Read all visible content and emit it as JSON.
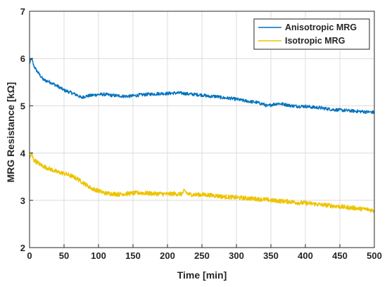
{
  "chart_data": {
    "type": "line",
    "xlabel": "Time [min]",
    "ylabel": "MRG Resistance [kΩ]",
    "xlim": [
      0,
      500
    ],
    "ylim": [
      2,
      7
    ],
    "xticks": [
      "0",
      "50",
      "100",
      "150",
      "200",
      "250",
      "300",
      "350",
      "400",
      "450",
      "500"
    ],
    "yticks": [
      "2",
      "3",
      "4",
      "5",
      "6",
      "7"
    ],
    "grid": true,
    "legend_position": "top-right",
    "series": [
      {
        "name": "Anisotropic MRG",
        "color": "#0072BD",
        "x": [
          0,
          3,
          6,
          10,
          15,
          20,
          30,
          40,
          50,
          60,
          70,
          75,
          80,
          90,
          100,
          110,
          120,
          130,
          140,
          150,
          160,
          170,
          180,
          190,
          200,
          210,
          220,
          230,
          240,
          250,
          260,
          270,
          280,
          290,
          300,
          310,
          320,
          330,
          340,
          345,
          350,
          360,
          370,
          380,
          390,
          400,
          410,
          420,
          430,
          440,
          450,
          460,
          470,
          480,
          490,
          500
        ],
        "y": [
          5.9,
          6.0,
          5.85,
          5.75,
          5.65,
          5.55,
          5.5,
          5.42,
          5.33,
          5.28,
          5.22,
          5.17,
          5.2,
          5.22,
          5.24,
          5.24,
          5.22,
          5.21,
          5.2,
          5.21,
          5.23,
          5.24,
          5.25,
          5.26,
          5.26,
          5.27,
          5.27,
          5.25,
          5.24,
          5.23,
          5.2,
          5.2,
          5.17,
          5.16,
          5.14,
          5.11,
          5.09,
          5.07,
          5.03,
          4.99,
          5.02,
          5.05,
          5.03,
          5.0,
          4.99,
          4.99,
          4.97,
          4.96,
          4.94,
          4.92,
          4.91,
          4.9,
          4.89,
          4.88,
          4.87,
          4.86
        ]
      },
      {
        "name": "Isotropic MRG",
        "color": "#EDC400",
        "x": [
          0,
          3,
          6,
          10,
          15,
          20,
          30,
          40,
          50,
          60,
          70,
          80,
          90,
          100,
          110,
          120,
          130,
          140,
          150,
          160,
          170,
          180,
          190,
          200,
          210,
          220,
          225,
          230,
          240,
          250,
          260,
          270,
          280,
          290,
          300,
          310,
          320,
          330,
          340,
          350,
          360,
          370,
          380,
          390,
          400,
          410,
          420,
          430,
          440,
          450,
          460,
          470,
          480,
          490,
          500
        ],
        "y": [
          3.9,
          3.98,
          3.85,
          3.82,
          3.76,
          3.72,
          3.66,
          3.6,
          3.57,
          3.52,
          3.45,
          3.35,
          3.25,
          3.2,
          3.15,
          3.14,
          3.13,
          3.14,
          3.15,
          3.16,
          3.15,
          3.14,
          3.14,
          3.13,
          3.14,
          3.13,
          3.2,
          3.13,
          3.12,
          3.12,
          3.11,
          3.1,
          3.08,
          3.07,
          3.06,
          3.05,
          3.04,
          3.03,
          3.02,
          3.0,
          2.99,
          2.98,
          2.97,
          2.95,
          2.94,
          2.93,
          2.91,
          2.9,
          2.88,
          2.87,
          2.85,
          2.84,
          2.82,
          2.81,
          2.78
        ]
      }
    ]
  }
}
